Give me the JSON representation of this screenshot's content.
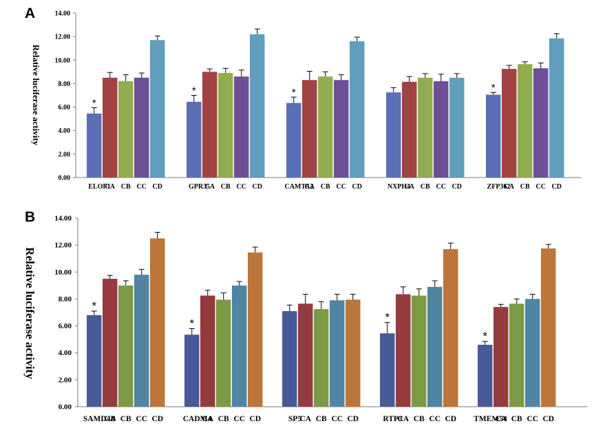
{
  "chart_data": [
    {
      "panel": "A",
      "type": "bar",
      "ylabel": "Relative luciferase activity",
      "ylim": [
        0,
        14
      ],
      "yticks": [
        "0.00",
        "2.00",
        "4.00",
        "6.00",
        "8.00",
        "10.00",
        "12.00",
        "14.00"
      ],
      "grid": false,
      "groups": [
        {
          "labels": [
            "ELOF1",
            "CA",
            "CB",
            "CC",
            "CD"
          ],
          "values": [
            5.45,
            8.5,
            8.2,
            8.5,
            11.7
          ],
          "errors": [
            0.5,
            0.45,
            0.55,
            0.4,
            0.35
          ],
          "star": [
            true,
            false,
            false,
            false,
            false
          ]
        },
        {
          "labels": [
            "GPR35",
            "CA",
            "CB",
            "CC",
            "CD"
          ],
          "values": [
            6.45,
            9.0,
            8.9,
            8.6,
            12.2
          ],
          "errors": [
            0.55,
            0.25,
            0.4,
            0.55,
            0.45
          ],
          "star": [
            true,
            false,
            false,
            false,
            false
          ]
        },
        {
          "labels": [
            "CAMTA2",
            "CA",
            "CB",
            "CC",
            "CD"
          ],
          "values": [
            6.35,
            8.3,
            8.6,
            8.3,
            11.6
          ],
          "errors": [
            0.5,
            0.75,
            0.4,
            0.45,
            0.35
          ],
          "star": [
            true,
            false,
            false,
            false,
            false
          ]
        },
        {
          "labels": [
            "NXPH4",
            "CA",
            "CB",
            "CC",
            "CD"
          ],
          "values": [
            7.25,
            8.15,
            8.5,
            8.2,
            8.5
          ],
          "errors": [
            0.4,
            0.45,
            0.35,
            0.6,
            0.35
          ],
          "star": [
            false,
            false,
            false,
            false,
            false
          ]
        },
        {
          "labels": [
            "ZFP362",
            "CA",
            "CB",
            "CC",
            "CD"
          ],
          "values": [
            7.05,
            9.25,
            9.65,
            9.3,
            11.85
          ],
          "errors": [
            0.2,
            0.3,
            0.2,
            0.45,
            0.4
          ],
          "star": [
            true,
            false,
            false,
            false,
            false
          ]
        }
      ],
      "colors": [
        "#5b6fb5",
        "#a14343",
        "#92ad4f",
        "#6e4f96",
        "#5f9fbd"
      ]
    },
    {
      "panel": "B",
      "type": "bar",
      "ylabel": "Relative luciferase activity",
      "ylim": [
        0,
        14
      ],
      "yticks": [
        "0.00",
        "2.00",
        "4.00",
        "6.00",
        "8.00",
        "10.00",
        "12.00",
        "14.00"
      ],
      "grid": false,
      "groups": [
        {
          "labels": [
            "SAMD4B",
            "CA",
            "CB",
            "CC",
            "CD"
          ],
          "values": [
            6.8,
            9.5,
            9.0,
            9.8,
            12.5
          ],
          "errors": [
            0.3,
            0.25,
            0.35,
            0.4,
            0.45
          ],
          "star": [
            true,
            false,
            false,
            false,
            false
          ]
        },
        {
          "labels": [
            "CADM4",
            "CA",
            "CB",
            "CC",
            "CD"
          ],
          "values": [
            5.35,
            8.25,
            7.95,
            9.0,
            11.45
          ],
          "errors": [
            0.45,
            0.4,
            0.5,
            0.3,
            0.4
          ],
          "star": [
            true,
            false,
            false,
            false,
            false
          ]
        },
        {
          "labels": [
            "SP5",
            "CA",
            "CB",
            "CC",
            "CD"
          ],
          "values": [
            7.1,
            7.65,
            7.25,
            7.9,
            7.95
          ],
          "errors": [
            0.45,
            0.7,
            0.55,
            0.45,
            0.4
          ],
          "star": [
            false,
            false,
            false,
            false,
            false
          ]
        },
        {
          "labels": [
            "RTP3",
            "CA",
            "CB",
            "CC",
            "CD"
          ],
          "values": [
            5.45,
            8.35,
            8.25,
            8.9,
            11.7
          ],
          "errors": [
            0.8,
            0.55,
            0.5,
            0.45,
            0.45
          ],
          "star": [
            true,
            false,
            false,
            false,
            false
          ]
        },
        {
          "labels": [
            "TMEM54",
            "CA",
            "CB",
            "CC",
            "CD"
          ],
          "values": [
            4.6,
            7.4,
            7.65,
            8.0,
            11.75
          ],
          "errors": [
            0.25,
            0.2,
            0.35,
            0.35,
            0.3
          ],
          "star": [
            true,
            false,
            false,
            false,
            false
          ]
        }
      ],
      "colors": [
        "#465b97",
        "#953b40",
        "#7b9a43",
        "#4f85a3",
        "#bc763a"
      ]
    }
  ]
}
